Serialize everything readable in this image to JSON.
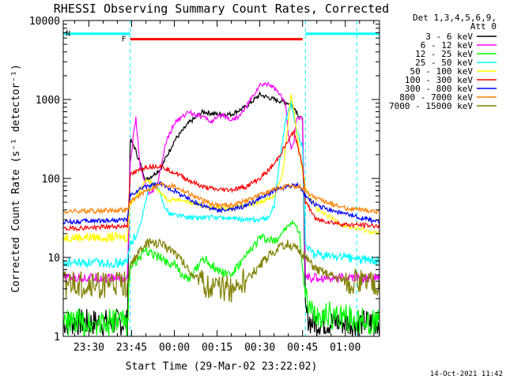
{
  "chart_data": {
    "type": "line",
    "title": "RHESSI Observing Summary Count Rates, Corrected",
    "xlabel": "Start Time (29-Mar-02 23:22:02)",
    "ylabel": "Corrected Count Rate (s⁻¹ detector⁻¹)",
    "yscale": "log",
    "ylim": [
      1,
      10000
    ],
    "xlim_minutes": [
      -9,
      102
    ],
    "x_tick_labels": [
      "23:30",
      "23:45",
      "00:00",
      "00:15",
      "00:30",
      "00:45",
      "01:00"
    ],
    "x_tick_minutes": [
      0,
      15,
      30,
      45,
      60,
      75,
      90
    ],
    "y_tick_labels": [
      "1",
      "10",
      "100",
      "1000",
      "10000"
    ],
    "y_tick_values": [
      1,
      10,
      100,
      1000,
      10000
    ],
    "legend_header": [
      "Det 1,3,4,5,6,9,",
      "Att 0"
    ],
    "legend_position": "right",
    "timestamp": "14-Oct-2021 11:42",
    "flags": [
      {
        "label": "F",
        "color": "#ff0000",
        "start_min": 14.5,
        "end_min": 75,
        "level": 5800
      },
      {
        "label": "N",
        "color": "#00ffff",
        "start_min": -9,
        "end_min": 14.5,
        "level": 6800
      },
      {
        "label": "",
        "color": "#00ffff",
        "start_min": 76,
        "end_min": 102,
        "level": 6800
      }
    ],
    "night_boundaries_min": [
      14.5,
      76,
      94
    ],
    "series": [
      {
        "name": "3 - 6 keV",
        "color": "#000000",
        "x": [
          -9,
          12,
          13.5,
          14.5,
          16,
          20,
          25,
          30,
          35,
          40,
          45,
          50,
          55,
          60,
          65,
          70,
          72,
          74,
          75,
          76,
          78,
          102
        ],
        "y": [
          1.5,
          1.5,
          1.5,
          310,
          250,
          95,
          130,
          300,
          500,
          700,
          650,
          650,
          800,
          1150,
          1000,
          900,
          800,
          600,
          550,
          2,
          1.5,
          1.5
        ]
      },
      {
        "name": "6 - 12 keV",
        "color": "#ff00ff",
        "x": [
          -9,
          13.5,
          14.5,
          15.5,
          16.5,
          18,
          21,
          24,
          27,
          30,
          35,
          40,
          43,
          47,
          50,
          53,
          56,
          60,
          63,
          66,
          69,
          70,
          71,
          72,
          73,
          74,
          75,
          76,
          78,
          102
        ],
        "y": [
          5.5,
          5.5,
          150,
          320,
          570,
          140,
          60,
          80,
          280,
          500,
          700,
          600,
          520,
          650,
          550,
          620,
          900,
          1500,
          1600,
          1300,
          900,
          350,
          250,
          300,
          600,
          550,
          600,
          6,
          5.5,
          5.5
        ]
      },
      {
        "name": "12 - 25 keV",
        "color": "#00ff00",
        "x": [
          -9,
          13.5,
          14.5,
          16,
          20,
          25,
          30,
          35,
          40,
          45,
          50,
          55,
          60,
          65,
          70,
          72,
          74,
          76,
          78,
          102
        ],
        "y": [
          1.5,
          1.5,
          8,
          8.5,
          12,
          10,
          8,
          5,
          10,
          7,
          6,
          10,
          18,
          16,
          25,
          28,
          20,
          3,
          2,
          1.5
        ]
      },
      {
        "name": "25 - 50 keV",
        "color": "#00ffff",
        "x": [
          -9,
          13.5,
          14.5,
          16,
          18,
          20,
          22,
          24,
          26,
          28,
          30,
          35,
          40,
          45,
          50,
          55,
          60,
          63,
          65,
          67,
          69,
          71,
          73,
          75,
          76,
          78,
          102
        ],
        "y": [
          8.5,
          8.5,
          15,
          18,
          25,
          55,
          85,
          80,
          50,
          36,
          35,
          32,
          32,
          32,
          31,
          30,
          30,
          32,
          45,
          170,
          530,
          900,
          400,
          250,
          15,
          11,
          9
        ]
      },
      {
        "name": "50 - 100 keV",
        "color": "#ffff00",
        "x": [
          -9,
          13.5,
          14.5,
          18,
          20,
          24,
          28,
          30,
          34,
          40,
          45,
          50,
          55,
          60,
          65,
          68,
          70,
          71,
          72,
          74,
          76,
          80,
          90,
          102
        ],
        "y": [
          18,
          18,
          48,
          70,
          100,
          75,
          52,
          55,
          52,
          45,
          42,
          42,
          45,
          50,
          60,
          110,
          550,
          1200,
          700,
          200,
          80,
          40,
          25,
          20
        ]
      },
      {
        "name": "100 - 300 keV",
        "color": "#ff0000",
        "x": [
          -9,
          13.5,
          14.5,
          20,
          25,
          30,
          35,
          40,
          45,
          50,
          55,
          60,
          65,
          70,
          72,
          74,
          75,
          76,
          80,
          90,
          102
        ],
        "y": [
          23,
          25,
          110,
          140,
          145,
          120,
          95,
          78,
          72,
          72,
          78,
          100,
          150,
          300,
          400,
          200,
          150,
          50,
          30,
          26,
          25
        ]
      },
      {
        "name": "300 - 800 keV",
        "color": "#0000ff",
        "x": [
          -9,
          13.5,
          14.5,
          20,
          25,
          30,
          35,
          40,
          45,
          50,
          55,
          60,
          65,
          70,
          72,
          74,
          76,
          80,
          90,
          102
        ],
        "y": [
          28,
          30,
          60,
          80,
          85,
          70,
          55,
          45,
          40,
          40,
          45,
          55,
          70,
          80,
          82,
          80,
          60,
          45,
          35,
          28
        ]
      },
      {
        "name": "800 - 7000 keV",
        "color": "#ff7f00",
        "x": [
          -9,
          13.5,
          14.5,
          20,
          25,
          30,
          35,
          40,
          45,
          50,
          55,
          60,
          65,
          70,
          74,
          76,
          80,
          90,
          102
        ],
        "y": [
          38,
          40,
          50,
          70,
          85,
          80,
          65,
          52,
          46,
          46,
          52,
          62,
          72,
          80,
          78,
          70,
          55,
          42,
          38
        ]
      },
      {
        "name": "7000 - 15000 keV",
        "color": "#808000",
        "x": [
          -9,
          13.5,
          14.5,
          18,
          20,
          25,
          30,
          35,
          40,
          45,
          50,
          55,
          60,
          65,
          70,
          74,
          76,
          80,
          90,
          102
        ],
        "y": [
          4.5,
          4.5,
          8,
          12,
          15,
          15,
          12,
          7,
          4.5,
          4,
          4,
          5,
          8,
          12,
          15,
          12,
          10,
          7,
          5,
          4.5
        ]
      }
    ]
  }
}
